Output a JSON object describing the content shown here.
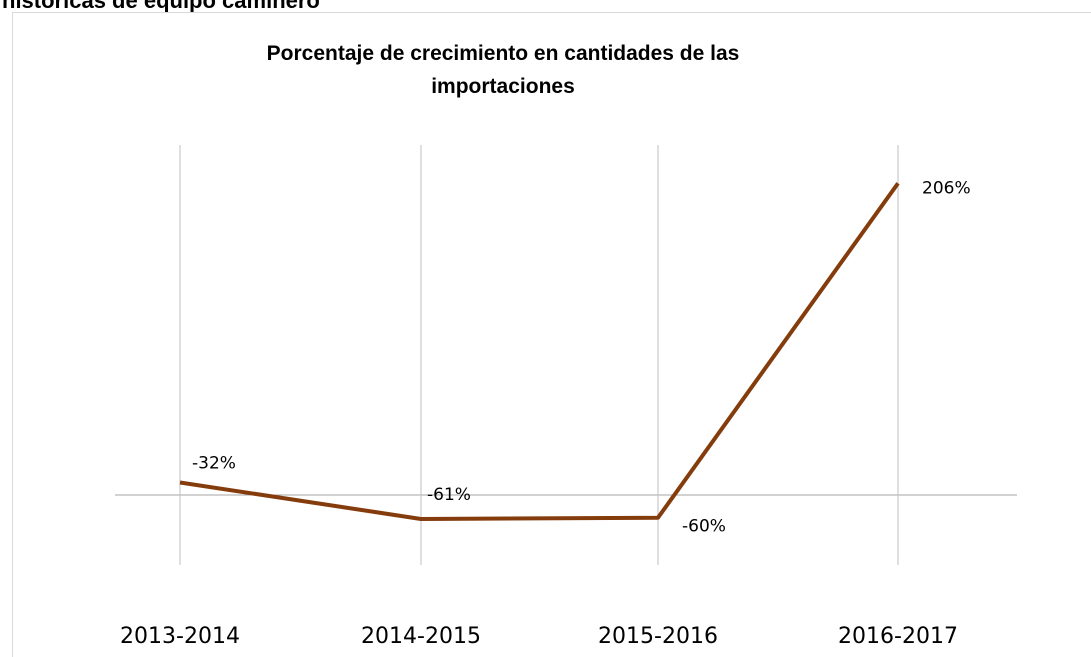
{
  "heading": "históricas de equipo caminero",
  "chart_data": {
    "type": "line",
    "title": [
      "Porcentaje de crecimiento en cantidades de las",
      "importaciones"
    ],
    "categories": [
      "2013-2014",
      "2014-2015",
      "2015-2016",
      "2016-2017"
    ],
    "series": [
      {
        "name": "Porcentaje de crecimiento",
        "color": "#843c0c",
        "values": [
          -32,
          -61,
          -60,
          206
        ],
        "value_labels": [
          "-32%",
          "-61%",
          "-60%",
          "206%"
        ]
      }
    ],
    "ylim": [
      -100,
      250
    ]
  }
}
